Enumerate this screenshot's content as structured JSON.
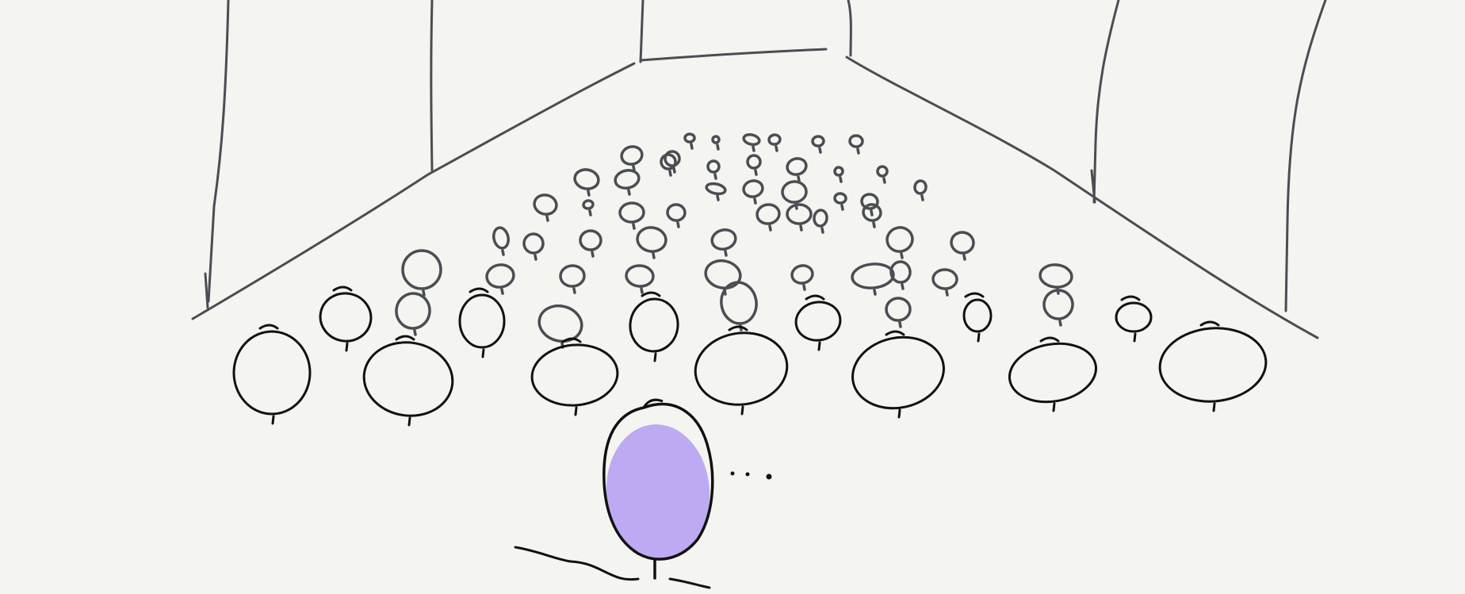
{
  "colors": {
    "background": "#f4f4f0",
    "ink": "#111111",
    "ink_far": "#4a4d52",
    "speaker_fill": "#b49cf2"
  },
  "scene": {
    "description_icons": [
      "hall-walls",
      "stage-floor-edge",
      "audience-heads",
      "speaker-figure",
      "ellipsis-dots"
    ]
  }
}
